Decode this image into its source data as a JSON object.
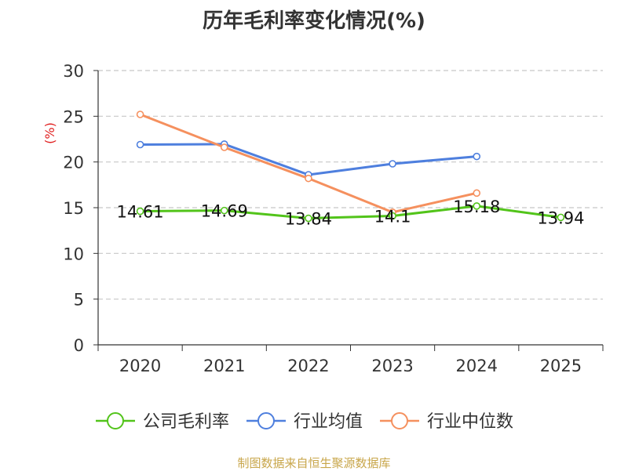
{
  "chart_data": {
    "type": "line",
    "title": "历年毛利率变化情况(%)",
    "ylabel": "(%)",
    "xlabel": "",
    "categories": [
      "2020",
      "2021",
      "2022",
      "2023",
      "2024",
      "2025"
    ],
    "ylim": [
      0,
      30
    ],
    "yticks": [
      0,
      5,
      10,
      15,
      20,
      25,
      30
    ],
    "grid": true,
    "legend_position": "bottom",
    "series": [
      {
        "name": "公司毛利率",
        "color": "#52c41a",
        "values": [
          14.61,
          14.69,
          13.84,
          14.1,
          15.18,
          13.94
        ],
        "labels": [
          "14.61",
          "14.69",
          "13.84",
          "14.1",
          "15.18",
          "13.94"
        ]
      },
      {
        "name": "行业均值",
        "color": "#4e7fde",
        "values": [
          21.9,
          21.95,
          18.6,
          19.8,
          20.6,
          null
        ]
      },
      {
        "name": "行业中位数",
        "color": "#f5905e",
        "values": [
          25.2,
          21.6,
          18.2,
          14.5,
          16.6,
          null
        ]
      }
    ]
  },
  "ylabel_color": "#e02020",
  "source": {
    "text": "制图数据来自恒生聚源数据库",
    "color": "#c8a64a"
  }
}
